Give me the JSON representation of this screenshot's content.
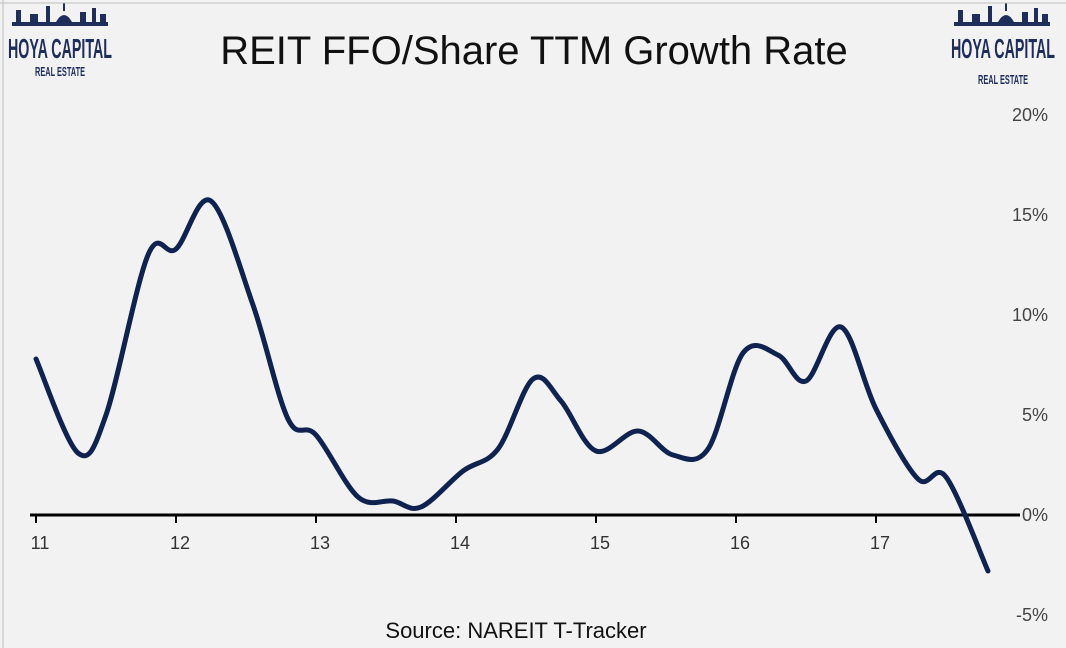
{
  "logo": {
    "main": "HOYA CAPITAL",
    "sub": "REAL ESTATE"
  },
  "chart_data": {
    "type": "line",
    "title": "REIT FFO/Share TTM Growth Rate",
    "source": "Source: NAREIT T-Tracker",
    "x_tick_labels": [
      "11",
      "12",
      "13",
      "14",
      "15",
      "16",
      "17"
    ],
    "x_tick_values": [
      2011,
      2012,
      2013,
      2014,
      2015,
      2016,
      2017
    ],
    "y_tick_labels": [
      "20%",
      "15%",
      "10%",
      "5%",
      "0%",
      "-5%"
    ],
    "y_tick_values": [
      20,
      15,
      10,
      5,
      0,
      -5
    ],
    "ylim": [
      -5,
      20
    ],
    "xlim": [
      2011,
      2018
    ],
    "line_color": "#0f2250",
    "series": [
      {
        "x": [
          2011.0,
          2011.3,
          2011.5,
          2011.8,
          2012.0,
          2012.25,
          2012.55,
          2012.8,
          2013.0,
          2013.3,
          2013.55,
          2013.75,
          2014.05,
          2014.3,
          2014.55,
          2014.75,
          2015.0,
          2015.3,
          2015.55,
          2015.8,
          2016.05,
          2016.3,
          2016.5,
          2016.75,
          2017.0,
          2017.3,
          2017.5,
          2017.8
        ],
        "values": [
          7.8,
          3.1,
          5.0,
          13.0,
          13.3,
          15.7,
          10.5,
          4.8,
          4.0,
          0.9,
          0.7,
          0.4,
          2.2,
          3.3,
          6.8,
          5.7,
          3.2,
          4.2,
          3.0,
          3.3,
          8.1,
          8.0,
          6.7,
          9.4,
          5.3,
          1.8,
          1.9,
          -2.8
        ]
      }
    ]
  }
}
